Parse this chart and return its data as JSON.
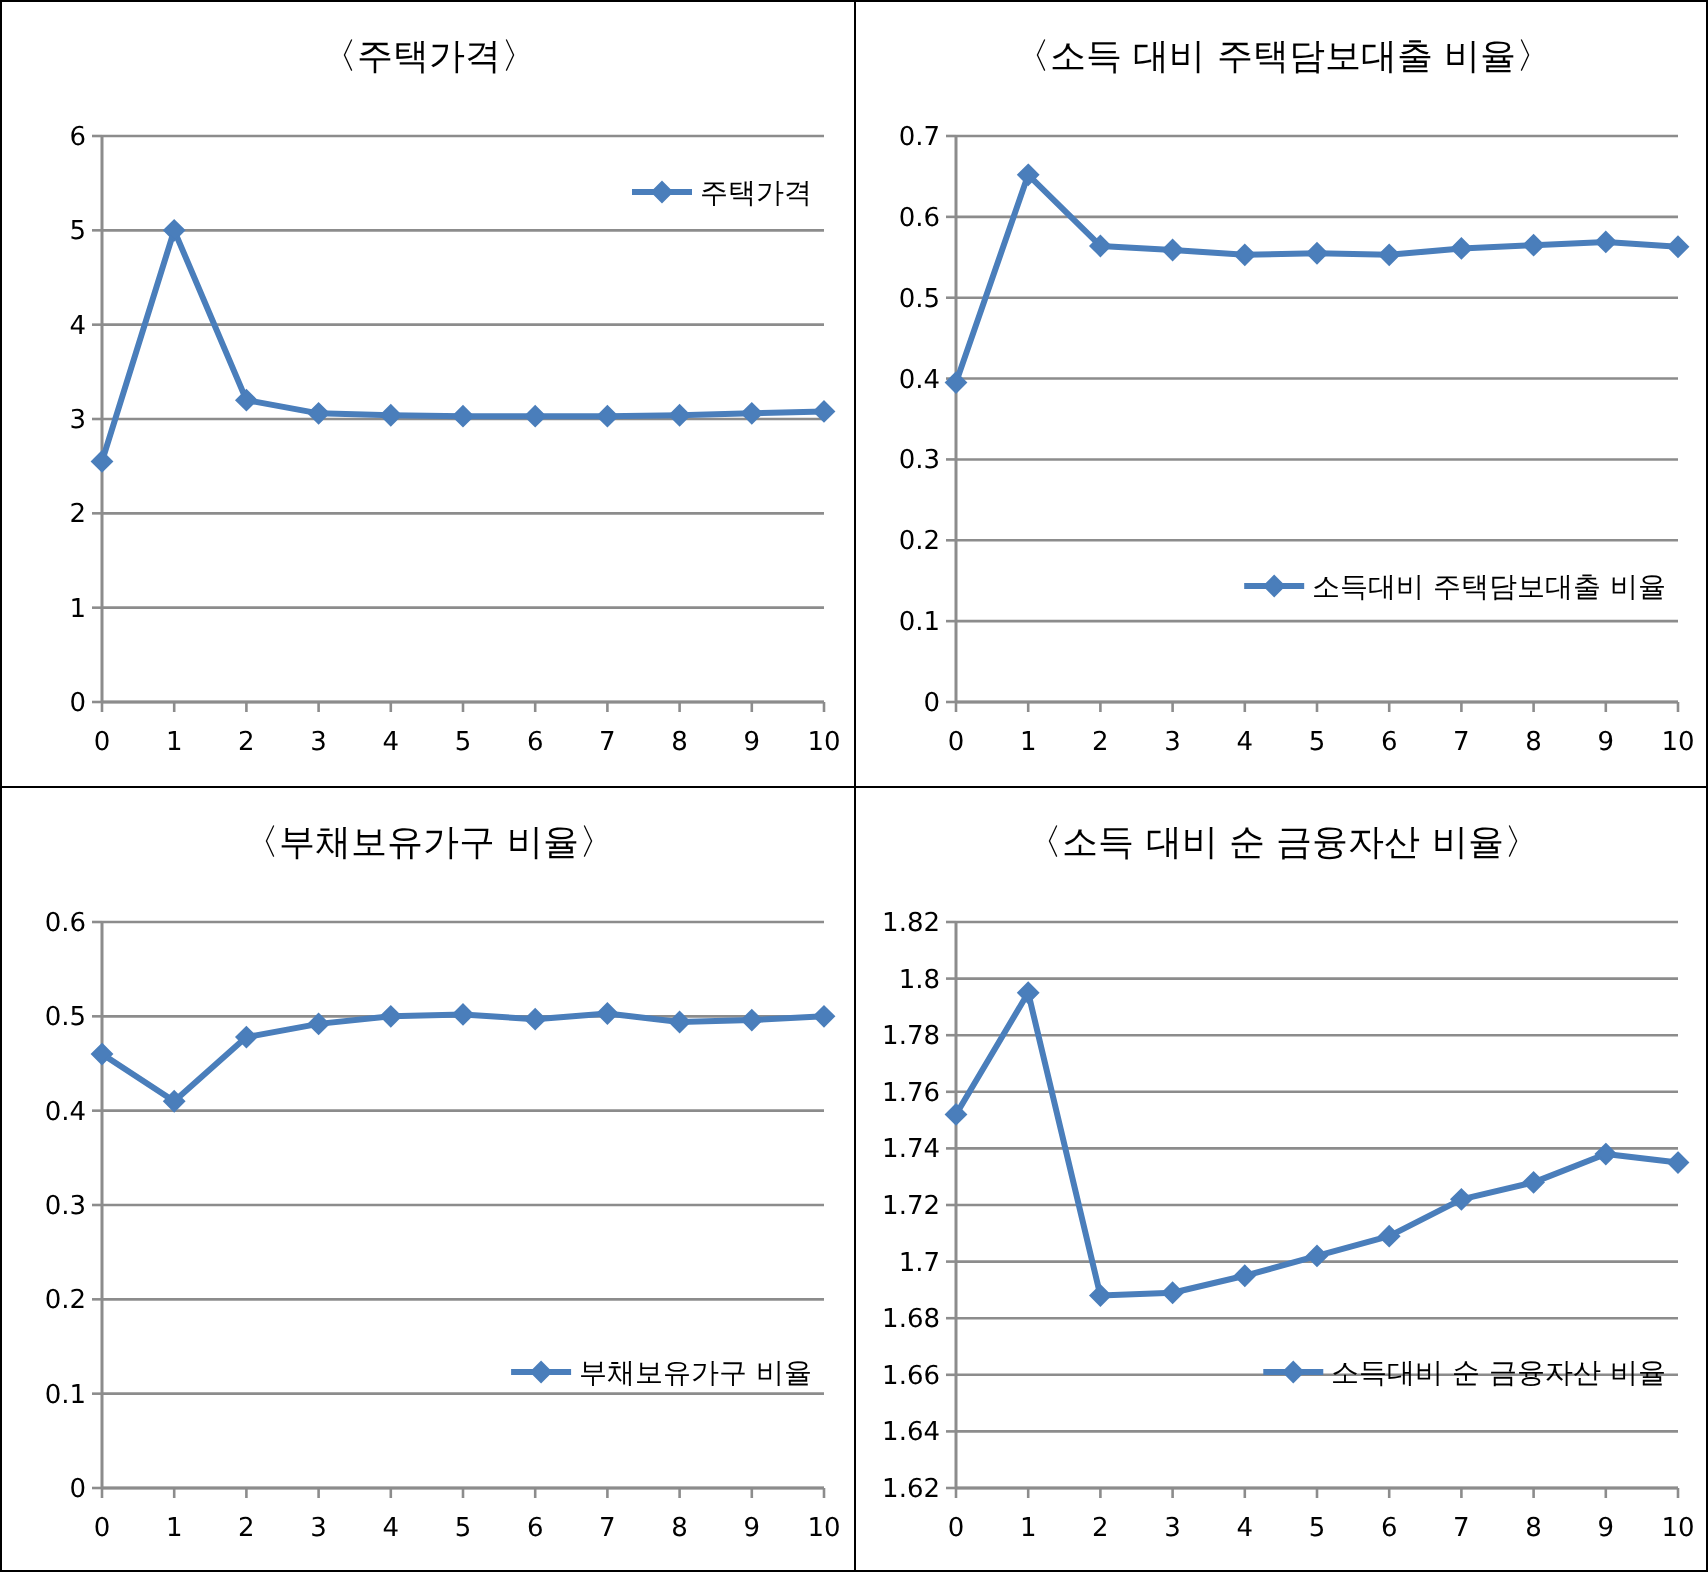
{
  "chart_data": [
    {
      "type": "line",
      "title": "〈주택가격〉",
      "x": [
        0,
        1,
        2,
        3,
        4,
        5,
        6,
        7,
        8,
        9,
        10
      ],
      "xlim": [
        0,
        10
      ],
      "xticks": [
        0,
        1,
        2,
        3,
        4,
        5,
        6,
        7,
        8,
        9,
        10
      ],
      "ylim": [
        0,
        6
      ],
      "yticks": [
        0,
        1,
        2,
        3,
        4,
        5,
        6
      ],
      "grid": "y",
      "legend": "top right",
      "marker": "diamond",
      "line_style": "solid",
      "series": [
        {
          "name": "주택가격",
          "color": "#4a7ebb",
          "values": [
            2.55,
            5.0,
            3.2,
            3.06,
            3.04,
            3.03,
            3.03,
            3.03,
            3.04,
            3.06,
            3.08
          ]
        }
      ]
    },
    {
      "type": "line",
      "title": "〈소득 대비 주택담보대출 비율〉",
      "x": [
        0,
        1,
        2,
        3,
        4,
        5,
        6,
        7,
        8,
        9,
        10
      ],
      "xlim": [
        0,
        10
      ],
      "xticks": [
        0,
        1,
        2,
        3,
        4,
        5,
        6,
        7,
        8,
        9,
        10
      ],
      "ylim": [
        0,
        0.7
      ],
      "yticks": [
        0,
        0.1,
        0.2,
        0.3,
        0.4,
        0.5,
        0.6,
        0.7
      ],
      "grid": "y",
      "legend": "bottom right",
      "marker": "diamond",
      "line_style": "solid",
      "series": [
        {
          "name": "소득대비 주택담보대출 비율",
          "color": "#4a7ebb",
          "values": [
            0.395,
            0.652,
            0.564,
            0.559,
            0.553,
            0.555,
            0.553,
            0.561,
            0.565,
            0.569,
            0.563
          ]
        }
      ]
    },
    {
      "type": "line",
      "title": "〈부채보유가구 비율〉",
      "x": [
        0,
        1,
        2,
        3,
        4,
        5,
        6,
        7,
        8,
        9,
        10
      ],
      "xlim": [
        0,
        10
      ],
      "xticks": [
        0,
        1,
        2,
        3,
        4,
        5,
        6,
        7,
        8,
        9,
        10
      ],
      "ylim": [
        0,
        0.6
      ],
      "yticks": [
        0,
        0.1,
        0.2,
        0.3,
        0.4,
        0.5,
        0.6
      ],
      "grid": "y",
      "legend": "bottom right",
      "marker": "diamond",
      "line_style": "solid",
      "series": [
        {
          "name": "부채보유가구 비율",
          "color": "#4a7ebb",
          "values": [
            0.46,
            0.41,
            0.478,
            0.492,
            0.5,
            0.502,
            0.497,
            0.503,
            0.494,
            0.496,
            0.5
          ]
        }
      ]
    },
    {
      "type": "line",
      "title": "〈소득 대비 순 금융자산 비율〉",
      "x": [
        0,
        1,
        2,
        3,
        4,
        5,
        6,
        7,
        8,
        9,
        10
      ],
      "xlim": [
        0,
        10
      ],
      "xticks": [
        0,
        1,
        2,
        3,
        4,
        5,
        6,
        7,
        8,
        9,
        10
      ],
      "ylim": [
        1.62,
        1.82
      ],
      "yticks": [
        1.62,
        1.64,
        1.66,
        1.68,
        1.7,
        1.72,
        1.74,
        1.76,
        1.78,
        1.8,
        1.82
      ],
      "grid": "y",
      "legend": "bottom right",
      "marker": "diamond",
      "line_style": "solid",
      "series": [
        {
          "name": "소득대비 순 금융자산 비율",
          "color": "#4a7ebb",
          "values": [
            1.752,
            1.795,
            1.688,
            1.689,
            1.695,
            1.702,
            1.709,
            1.722,
            1.728,
            1.738,
            1.735
          ]
        }
      ]
    }
  ]
}
